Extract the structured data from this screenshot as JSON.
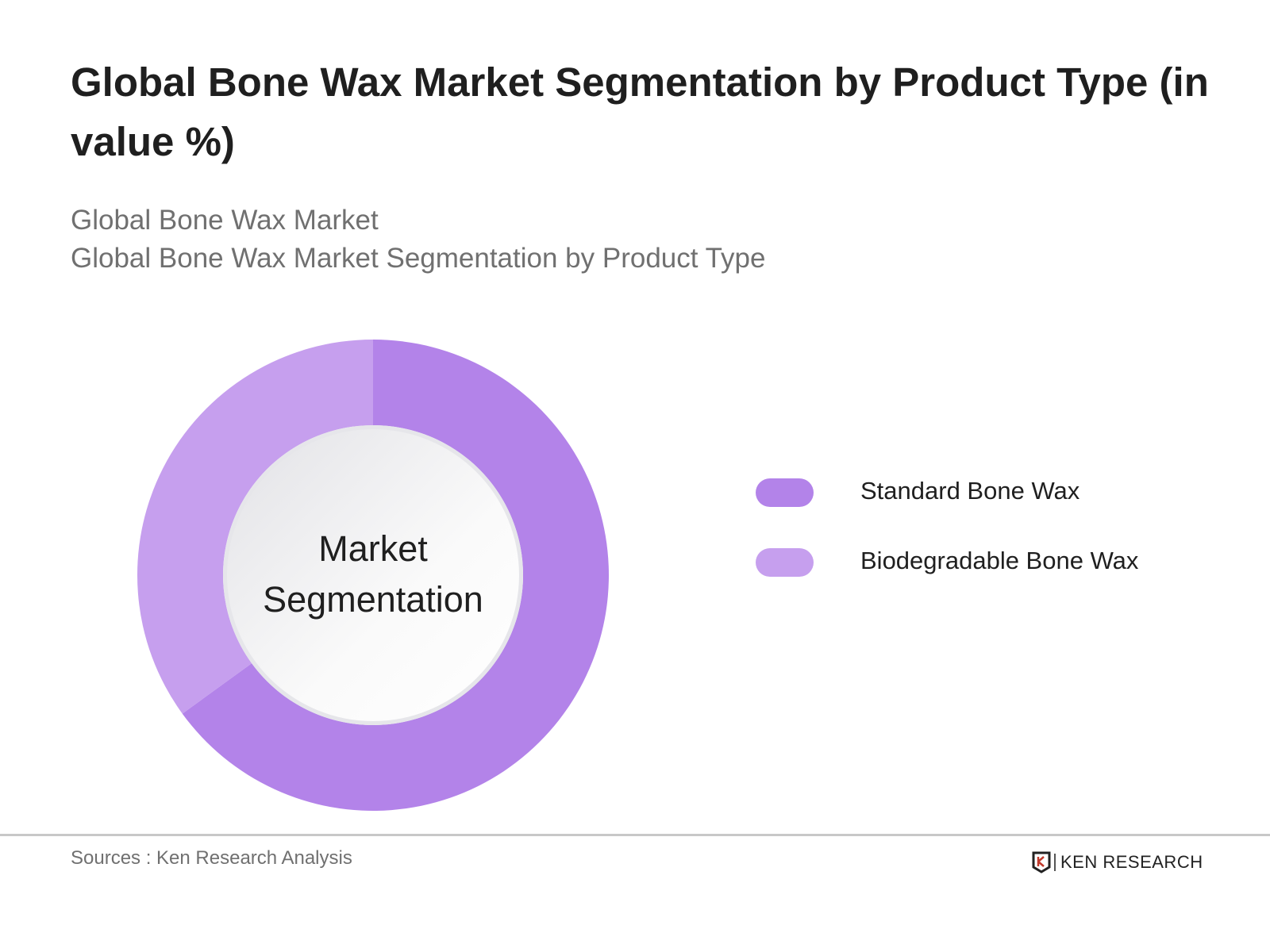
{
  "title": "Global Bone Wax Market Segmentation by Product Type (in value %)",
  "subtitles": [
    "Global Bone Wax Market",
    "Global Bone Wax Market Segmentation by Product Type"
  ],
  "chart_data": {
    "type": "pie",
    "variant": "donut",
    "center_label": "Market Segmentation",
    "categories": [
      "Standard Bone Wax",
      "Biodegradable Bone Wax"
    ],
    "values": [
      65,
      35
    ],
    "colors": [
      "#b383e9",
      "#c69fee"
    ],
    "legend_placement": "right"
  },
  "footer": {
    "source": "Sources : Ken Research Analysis",
    "logo_text": "KEN RESEARCH"
  }
}
